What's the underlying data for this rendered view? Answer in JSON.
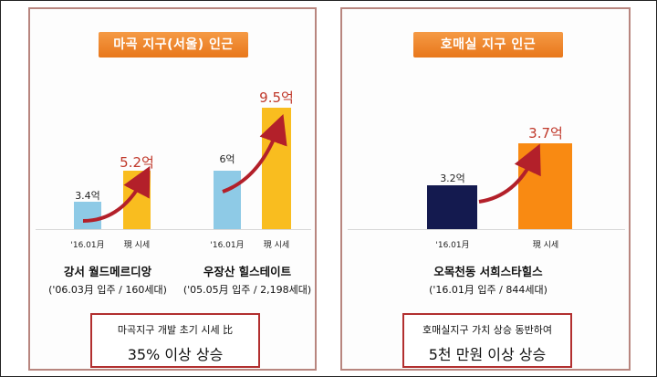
{
  "chart_data": [
    {
      "type": "bar",
      "header": "마곡 지구(서울) 인근",
      "categories": [
        "'16.01月",
        "現 시세"
      ],
      "groups": [
        {
          "name": "강서 월드메르디앙",
          "info": "('06.03月 입주 / 160세대)",
          "values": [
            3.4,
            5.2
          ],
          "value_labels": [
            "3.4억",
            "5.2억"
          ]
        },
        {
          "name": "우장산 힐스테이트",
          "info": "('05.05月 입주 / 2,198세대)",
          "values": [
            6,
            9.5
          ],
          "value_labels": [
            "6억",
            "9.5억"
          ]
        }
      ],
      "summary_line1": "마곡지구 개발 초기 시세 比",
      "summary_line2": "35% 이상 상승",
      "colors": {
        "before": "#8ecae6",
        "after": "#f9bd1f",
        "arrow": "#b3202a"
      }
    },
    {
      "type": "bar",
      "header": "호매실 지구 인근",
      "categories": [
        "'16.01月",
        "現 시세"
      ],
      "groups": [
        {
          "name": "오목천동 서희스타힐스",
          "info": "('16.01月 입주 / 844세대)",
          "values": [
            3.2,
            3.7
          ],
          "value_labels": [
            "3.2억",
            "3.7억"
          ]
        }
      ],
      "summary_line1": "호매실지구 가치 상승 동반하여",
      "summary_line2": "5천 만원 이상 상승",
      "colors": {
        "before": "#141a4f",
        "after": "#f98a12",
        "arrow": "#b3202a"
      }
    }
  ]
}
